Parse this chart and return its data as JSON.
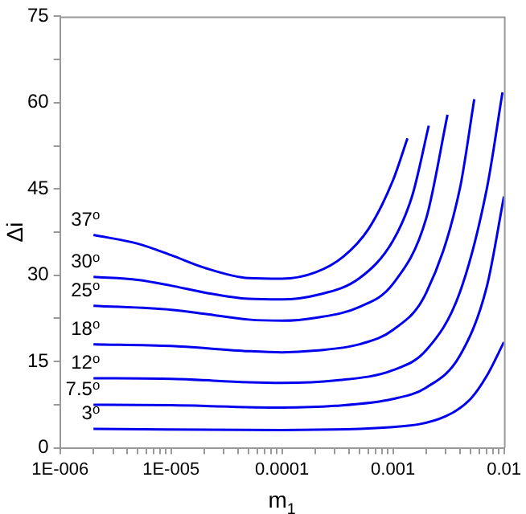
{
  "chart_data": {
    "type": "line",
    "xlabel": "m$_{1}$",
    "ylabel": "Δi",
    "log": "x",
    "grid": false,
    "marker": "none",
    "line_style": "solid",
    "xlim": [
      1e-06,
      0.01
    ],
    "xticks": [
      {
        "value": 1e-06,
        "label": "1E-006"
      },
      {
        "value": 2e-06,
        "label": null
      },
      {
        "value": 3e-06,
        "label": null
      },
      {
        "value": 4e-06,
        "label": null
      },
      {
        "value": 5e-06,
        "label": null
      },
      {
        "value": 6e-06,
        "label": null
      },
      {
        "value": 7e-06,
        "label": null
      },
      {
        "value": 8e-06,
        "label": null
      },
      {
        "value": 9e-06,
        "label": null
      },
      {
        "value": 1e-05,
        "label": "1E-005"
      },
      {
        "value": 2e-05,
        "label": null
      },
      {
        "value": 3e-05,
        "label": null
      },
      {
        "value": 4e-05,
        "label": null
      },
      {
        "value": 5e-05,
        "label": null
      },
      {
        "value": 6e-05,
        "label": null
      },
      {
        "value": 7e-05,
        "label": null
      },
      {
        "value": 8e-05,
        "label": null
      },
      {
        "value": 9e-05,
        "label": null
      },
      {
        "value": 0.0001,
        "label": "0.0001"
      },
      {
        "value": 0.0002,
        "label": null
      },
      {
        "value": 0.0003,
        "label": null
      },
      {
        "value": 0.0004,
        "label": null
      },
      {
        "value": 0.0005,
        "label": null
      },
      {
        "value": 0.0006,
        "label": null
      },
      {
        "value": 0.0007,
        "label": null
      },
      {
        "value": 0.0008,
        "label": null
      },
      {
        "value": 0.0009,
        "label": null
      },
      {
        "value": 0.001,
        "label": "0.001"
      },
      {
        "value": 0.002,
        "label": null
      },
      {
        "value": 0.003,
        "label": null
      },
      {
        "value": 0.004,
        "label": null
      },
      {
        "value": 0.005,
        "label": null
      },
      {
        "value": 0.006,
        "label": null
      },
      {
        "value": 0.007,
        "label": null
      },
      {
        "value": 0.008,
        "label": null
      },
      {
        "value": 0.009,
        "label": null
      },
      {
        "value": 0.01,
        "label": "0.01"
      }
    ],
    "ylim": [
      0,
      75
    ],
    "yticks": [
      0,
      {
        "value": 7.5,
        "label": null
      },
      15,
      {
        "value": 22.5,
        "label": null
      },
      30,
      {
        "value": 37.5,
        "label": null
      },
      45,
      {
        "value": 52.5,
        "label": null
      },
      60,
      {
        "value": 67.5,
        "label": null
      },
      75
    ],
    "series": [
      {
        "color": "#0000ee",
        "x": [
          2e-06,
          5e-06,
          1e-05,
          2e-05,
          5e-05,
          0.0001,
          0.0002,
          0.00036,
          0.0006,
          0.001,
          0.00135
        ],
        "values": [
          37,
          35.5,
          33.5,
          31.3,
          29.5,
          29.4,
          30.5,
          33.3,
          38,
          46.5,
          53.8
        ]
      },
      {
        "color": "#0000ee",
        "x": [
          2e-06,
          5e-06,
          1e-05,
          2e-05,
          5e-05,
          0.0001,
          0.0002,
          0.0005,
          0.001,
          0.0015,
          0.0021
        ],
        "values": [
          29.7,
          29.2,
          28.2,
          27,
          25.9,
          25.8,
          26.5,
          29.5,
          36,
          44,
          56
        ]
      },
      {
        "color": "#0000ee",
        "x": [
          2e-06,
          1e-05,
          2e-05,
          5e-05,
          0.0001,
          0.0002,
          0.0005,
          0.001,
          0.002,
          0.0031
        ],
        "values": [
          24.7,
          24,
          23.3,
          22.3,
          22.1,
          22.6,
          24.5,
          28.5,
          40,
          57.9
        ]
      },
      {
        "color": "#0000ee",
        "x": [
          2e-06,
          1e-05,
          5e-05,
          0.0001,
          0.0002,
          0.0005,
          0.001,
          0.002,
          0.004,
          0.0054
        ],
        "values": [
          18,
          17.7,
          16.8,
          16.6,
          16.9,
          18,
          20.5,
          27,
          45,
          60.6
        ]
      },
      {
        "color": "#0000ee",
        "x": [
          2e-06,
          1e-05,
          5e-05,
          0.0001,
          0.0003,
          0.001,
          0.002,
          0.004,
          0.007,
          0.0097
        ],
        "values": [
          12.1,
          12,
          11.4,
          11.3,
          11.7,
          13.5,
          17,
          27,
          45,
          61.8
        ]
      },
      {
        "color": "#0000ee",
        "x": [
          2e-06,
          1e-05,
          0.0001,
          0.0003,
          0.001,
          0.002,
          0.004,
          0.007,
          0.01
        ],
        "values": [
          7.5,
          7.4,
          7,
          7.3,
          8.5,
          10.5,
          16,
          28,
          43.7
        ]
      },
      {
        "color": "#0000ee",
        "x": [
          2e-06,
          0.0001,
          0.001,
          0.003,
          0.005,
          0.007,
          0.01
        ],
        "values": [
          3.3,
          3.1,
          3.6,
          5.5,
          8.5,
          12.5,
          18.4
        ]
      }
    ],
    "annotations": [
      "37$^{o}$",
      "30$^{o}$",
      "25$^{o}$",
      "18$^{o}$",
      "12$^{o}$",
      "7.5$^{o}$",
      "3$^{o}$"
    ]
  }
}
